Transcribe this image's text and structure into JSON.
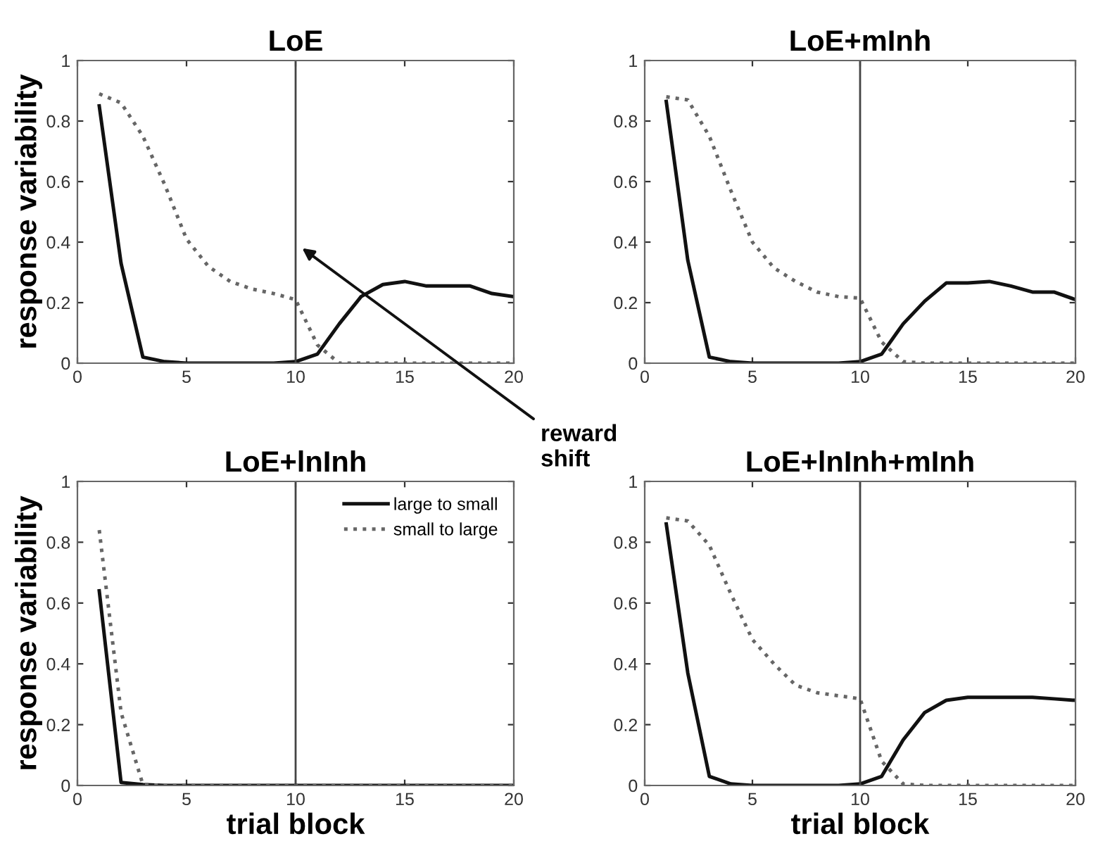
{
  "chart_data": [
    {
      "type": "line",
      "title": "LoE",
      "ylabel": "response variability",
      "x": [
        1,
        2,
        3,
        4,
        5,
        6,
        7,
        8,
        9,
        10,
        11,
        12,
        13,
        14,
        15,
        16,
        17,
        18,
        19,
        20
      ],
      "xlim": [
        0,
        20
      ],
      "xticks": [
        0,
        5,
        10,
        15,
        20
      ],
      "ylim": [
        0,
        1
      ],
      "yticks": [
        0,
        0.2,
        0.4,
        0.6,
        0.8,
        1
      ],
      "grid": false,
      "legend": false,
      "ref_lines": [
        {
          "axis": "x",
          "value": 10,
          "color": "#444444"
        }
      ],
      "annotations": [
        {
          "text": "reward\nshift",
          "x": 10.3,
          "y": 0.38
        }
      ],
      "series": [
        {
          "color": "#111111",
          "line_style": "solid",
          "values": [
            0.85,
            0.33,
            0.02,
            0.005,
            0,
            0,
            0,
            0,
            0,
            0.005,
            0.03,
            0.13,
            0.22,
            0.26,
            0.27,
            0.255,
            0.255,
            0.255,
            0.23,
            0.22
          ]
        },
        {
          "color": "#666666",
          "line_style": "dotted",
          "values": [
            0.89,
            0.86,
            0.75,
            0.59,
            0.41,
            0.32,
            0.27,
            0.245,
            0.23,
            0.21,
            0.06,
            0,
            0,
            0,
            0,
            0,
            0,
            0,
            0,
            0
          ]
        }
      ]
    },
    {
      "type": "line",
      "title": "LoE+mInh",
      "x": [
        1,
        2,
        3,
        4,
        5,
        6,
        7,
        8,
        9,
        10,
        11,
        12,
        13,
        14,
        15,
        16,
        17,
        18,
        19,
        20
      ],
      "xlim": [
        0,
        20
      ],
      "xticks": [
        0,
        5,
        10,
        15,
        20
      ],
      "ylim": [
        0,
        1
      ],
      "yticks": [
        0,
        0.2,
        0.4,
        0.6,
        0.8,
        1
      ],
      "grid": false,
      "legend": false,
      "ref_lines": [
        {
          "axis": "x",
          "value": 10,
          "color": "#444444"
        }
      ],
      "series": [
        {
          "color": "#111111",
          "line_style": "solid",
          "values": [
            0.865,
            0.34,
            0.02,
            0.005,
            0,
            0,
            0,
            0,
            0,
            0.005,
            0.03,
            0.13,
            0.205,
            0.265,
            0.265,
            0.27,
            0.255,
            0.235,
            0.235,
            0.21
          ]
        },
        {
          "color": "#666666",
          "line_style": "dotted",
          "values": [
            0.88,
            0.87,
            0.75,
            0.57,
            0.4,
            0.315,
            0.27,
            0.235,
            0.22,
            0.215,
            0.07,
            0.005,
            0,
            0,
            0,
            0,
            0,
            0,
            0,
            0
          ]
        }
      ]
    },
    {
      "type": "line",
      "title": "LoE+lnInh",
      "xlabel": "trial block",
      "ylabel": "response variability",
      "x": [
        1,
        2,
        3,
        4,
        5,
        6,
        7,
        8,
        9,
        10,
        11,
        12,
        13,
        14,
        15,
        16,
        17,
        18,
        19,
        20
      ],
      "xlim": [
        0,
        20
      ],
      "xticks": [
        0,
        5,
        10,
        15,
        20
      ],
      "ylim": [
        0,
        1
      ],
      "yticks": [
        0,
        0.2,
        0.4,
        0.6,
        0.8,
        1
      ],
      "grid": false,
      "legend": "top right",
      "ref_lines": [
        {
          "axis": "x",
          "value": 10,
          "color": "#444444"
        }
      ],
      "series": [
        {
          "name": "large to small",
          "color": "#111111",
          "line_style": "solid",
          "values": [
            0.64,
            0.01,
            0.003,
            0,
            0,
            0,
            0,
            0,
            0,
            0,
            0,
            0,
            0,
            0,
            0,
            0,
            0,
            0,
            0,
            0
          ]
        },
        {
          "name": "small to large",
          "color": "#666666",
          "line_style": "dotted",
          "values": [
            0.84,
            0.24,
            0.003,
            0,
            0,
            0,
            0,
            0,
            0,
            0,
            0,
            0,
            0,
            0,
            0,
            0,
            0,
            0,
            0,
            0
          ]
        }
      ]
    },
    {
      "type": "line",
      "title": "LoE+lnInh+mInh",
      "xlabel": "trial block",
      "x": [
        1,
        2,
        3,
        4,
        5,
        6,
        7,
        8,
        9,
        10,
        11,
        12,
        13,
        14,
        15,
        16,
        17,
        18,
        19,
        20
      ],
      "xlim": [
        0,
        20
      ],
      "xticks": [
        0,
        5,
        10,
        15,
        20
      ],
      "ylim": [
        0,
        1
      ],
      "yticks": [
        0,
        0.2,
        0.4,
        0.6,
        0.8,
        1
      ],
      "grid": false,
      "legend": false,
      "ref_lines": [
        {
          "axis": "x",
          "value": 10,
          "color": "#444444"
        }
      ],
      "series": [
        {
          "color": "#111111",
          "line_style": "solid",
          "values": [
            0.86,
            0.37,
            0.03,
            0.005,
            0,
            0,
            0,
            0,
            0,
            0.005,
            0.03,
            0.15,
            0.24,
            0.28,
            0.29,
            0.29,
            0.29,
            0.29,
            0.285,
            0.28
          ]
        },
        {
          "color": "#666666",
          "line_style": "dotted",
          "values": [
            0.88,
            0.87,
            0.79,
            0.63,
            0.48,
            0.4,
            0.33,
            0.305,
            0.295,
            0.285,
            0.08,
            0.005,
            0,
            0,
            0,
            0,
            0,
            0,
            0,
            0
          ]
        }
      ]
    }
  ]
}
